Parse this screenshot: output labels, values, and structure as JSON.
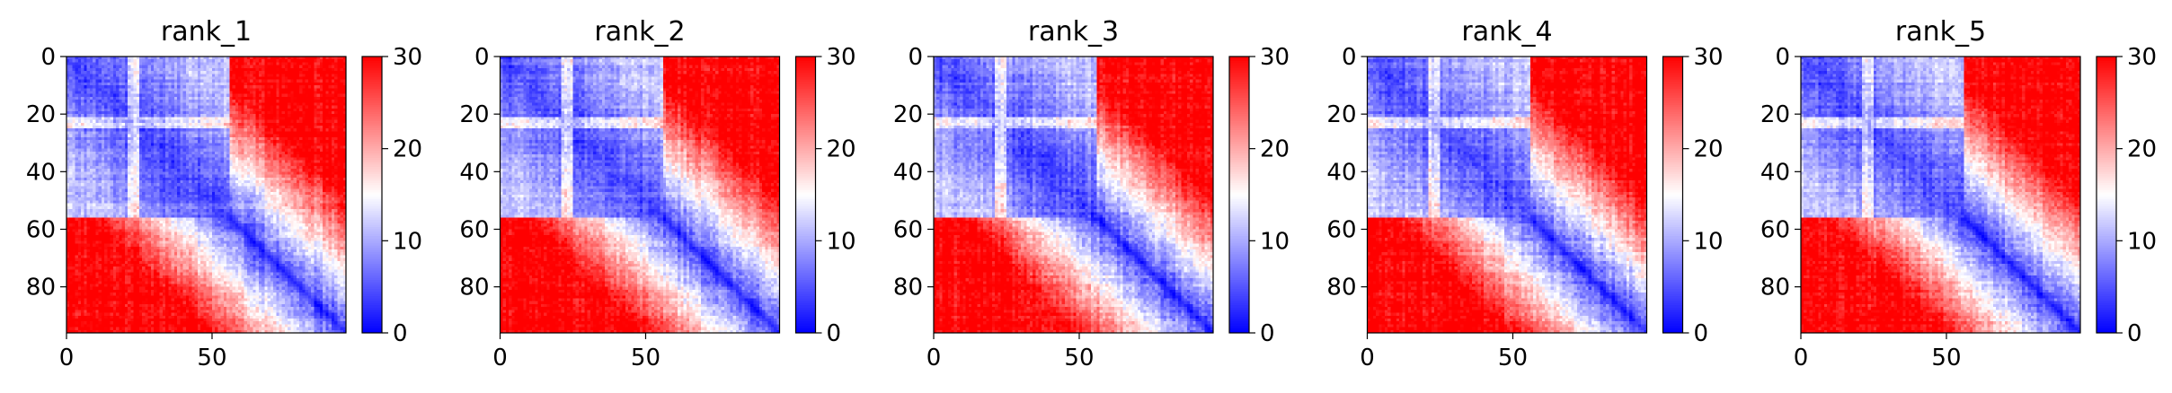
{
  "chart_data": [
    {
      "type": "heatmap",
      "title": "rank_1",
      "x_ticks": [
        0,
        50
      ],
      "y_ticks": [
        0,
        20,
        40,
        60,
        80
      ],
      "xlim": [
        0,
        96
      ],
      "ylim": [
        96,
        0
      ],
      "colorbar": {
        "ticks": [
          0,
          10,
          20,
          30
        ],
        "range": [
          0,
          30
        ],
        "colormap": [
          "#0000ff",
          "#ffffff",
          "#ff0000"
        ]
      },
      "domains": [
        {
          "start": 0,
          "end": 56
        }
      ]
    },
    {
      "type": "heatmap",
      "title": "rank_2",
      "x_ticks": [
        0,
        50
      ],
      "y_ticks": [
        0,
        20,
        40,
        60,
        80
      ],
      "xlim": [
        0,
        96
      ],
      "ylim": [
        96,
        0
      ],
      "colorbar": {
        "ticks": [
          0,
          10,
          20,
          30
        ],
        "range": [
          0,
          30
        ],
        "colormap": [
          "#0000ff",
          "#ffffff",
          "#ff0000"
        ]
      },
      "domains": [
        {
          "start": 0,
          "end": 56
        }
      ]
    },
    {
      "type": "heatmap",
      "title": "rank_3",
      "x_ticks": [
        0,
        50
      ],
      "y_ticks": [
        0,
        20,
        40,
        60,
        80
      ],
      "xlim": [
        0,
        96
      ],
      "ylim": [
        96,
        0
      ],
      "colorbar": {
        "ticks": [
          0,
          10,
          20,
          30
        ],
        "range": [
          0,
          30
        ],
        "colormap": [
          "#0000ff",
          "#ffffff",
          "#ff0000"
        ]
      },
      "domains": [
        {
          "start": 0,
          "end": 56
        }
      ]
    },
    {
      "type": "heatmap",
      "title": "rank_4",
      "x_ticks": [
        0,
        50
      ],
      "y_ticks": [
        0,
        20,
        40,
        60,
        80
      ],
      "xlim": [
        0,
        96
      ],
      "ylim": [
        96,
        0
      ],
      "colorbar": {
        "ticks": [
          0,
          10,
          20,
          30
        ],
        "range": [
          0,
          30
        ],
        "colormap": [
          "#0000ff",
          "#ffffff",
          "#ff0000"
        ]
      },
      "domains": [
        {
          "start": 0,
          "end": 56
        }
      ]
    },
    {
      "type": "heatmap",
      "title": "rank_5",
      "x_ticks": [
        0,
        50
      ],
      "y_ticks": [
        0,
        20,
        40,
        60,
        80
      ],
      "xlim": [
        0,
        96
      ],
      "ylim": [
        96,
        0
      ],
      "colorbar": {
        "ticks": [
          0,
          10,
          20,
          30
        ],
        "range": [
          0,
          30
        ],
        "colormap": [
          "#0000ff",
          "#ffffff",
          "#ff0000"
        ]
      },
      "domains": [
        {
          "start": 0,
          "end": 56
        }
      ]
    }
  ]
}
